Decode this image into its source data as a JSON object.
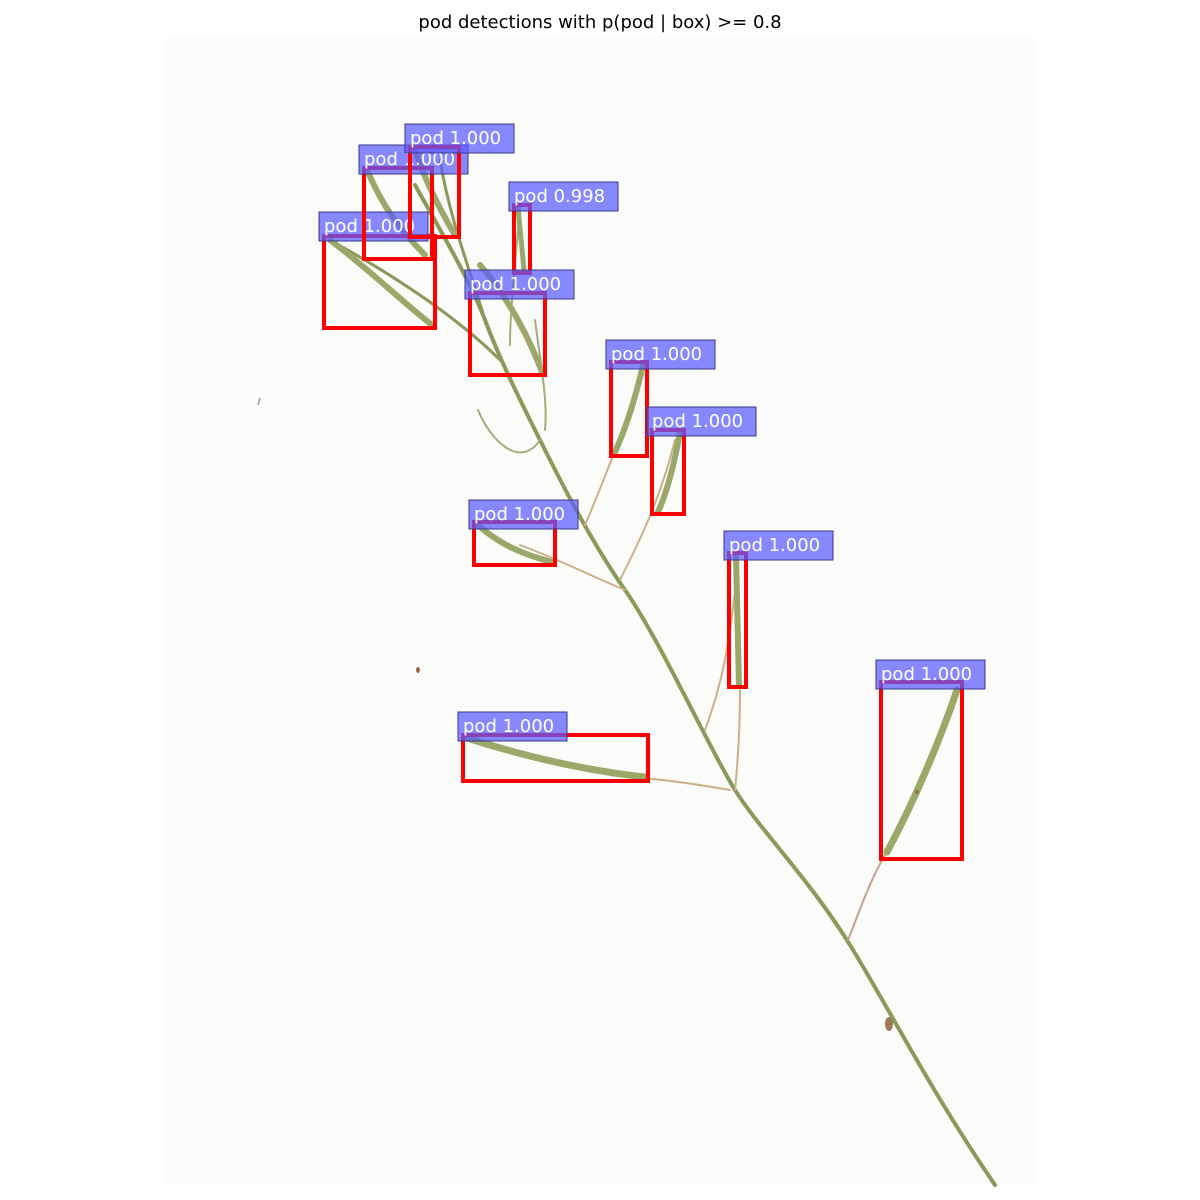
{
  "title": "pod detections with p(pod | box) >= 0.8",
  "colors": {
    "box": "#ff0000",
    "label_bg": "#5b5bff",
    "label_text": "#ffffff",
    "stem": "#8a9a5b",
    "pod": "#9aa86a",
    "pedicel": "#c9b08a"
  },
  "detections": [
    {
      "label": "pod 1.000"
    },
    {
      "label": "pod 1.000"
    },
    {
      "label": "pod 0.998"
    },
    {
      "label": "pod 1.000"
    },
    {
      "label": "pod 1.000"
    },
    {
      "label": "pod 1.000"
    },
    {
      "label": "pod 1.000"
    },
    {
      "label": "pod 1.000"
    },
    {
      "label": "pod 1.000"
    },
    {
      "label": "pod 1.000"
    },
    {
      "label": "pod 1.000"
    }
  ]
}
